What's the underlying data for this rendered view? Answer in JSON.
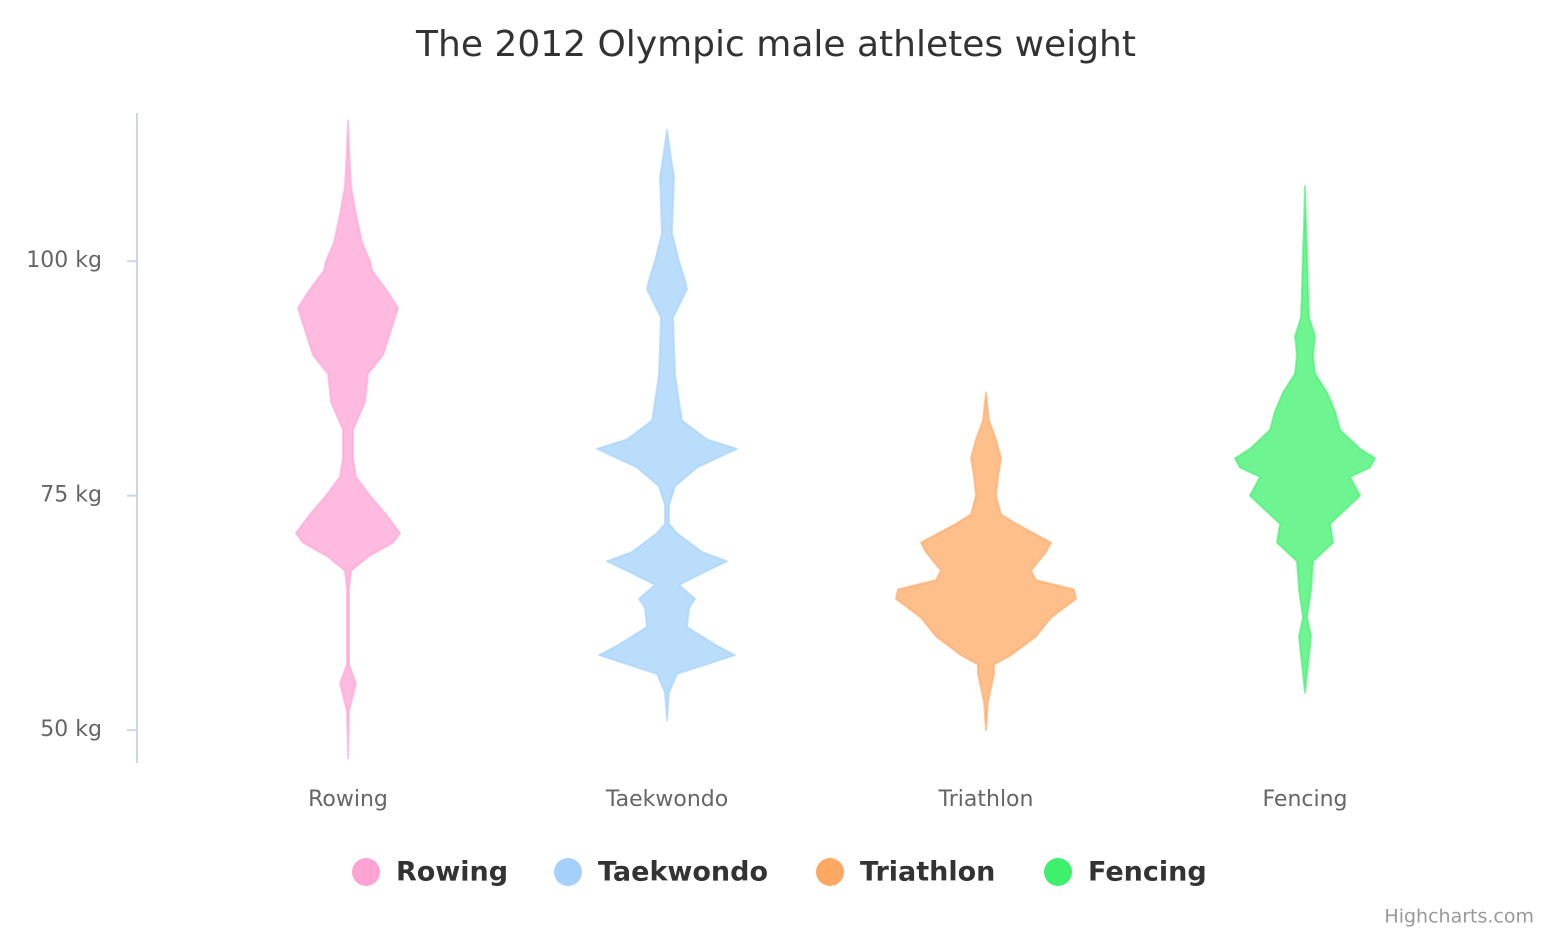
{
  "chart_data": {
    "type": "violin",
    "title": "The 2012 Olympic male athletes weight",
    "categories": [
      "Rowing",
      "Taekwondo",
      "Triathlon",
      "Fencing"
    ],
    "ylim": [
      46.5,
      115.8
    ],
    "yticks": [
      {
        "value": 50,
        "label": "50 kg"
      },
      {
        "value": 75,
        "label": "75 kg"
      },
      {
        "value": 100,
        "label": "100 kg"
      }
    ],
    "credits": "Highcharts.com",
    "series": [
      {
        "name": "Rowing",
        "color": "#ffa3d4",
        "values": [
          47,
          52,
          55,
          57,
          60,
          65,
          67,
          68.5,
          70,
          71,
          73,
          75,
          77,
          79,
          82,
          85,
          88,
          90,
          93,
          95,
          97,
          99,
          100,
          102,
          105,
          108,
          112,
          115
        ],
        "density": [
          0,
          0.01,
          0.08,
          0.01,
          0.01,
          0.01,
          0.03,
          0.2,
          0.45,
          0.52,
          0.38,
          0.22,
          0.08,
          0.05,
          0.05,
          0.17,
          0.2,
          0.35,
          0.44,
          0.5,
          0.38,
          0.24,
          0.22,
          0.14,
          0.08,
          0.03,
          0.01,
          0
        ]
      },
      {
        "name": "Taekwondo",
        "color": "#a3d1fb",
        "values": [
          51,
          54,
          56,
          58,
          59,
          61,
          63,
          64,
          65.5,
          67,
          68,
          69,
          71,
          72,
          74,
          76,
          78,
          80,
          81,
          83,
          85,
          88,
          91,
          94,
          97,
          98,
          100,
          103,
          106,
          109,
          111,
          114
        ],
        "density": [
          0,
          0.02,
          0.1,
          0.68,
          0.5,
          0.2,
          0.22,
          0.28,
          0.12,
          0.4,
          0.6,
          0.35,
          0.1,
          0.02,
          0.02,
          0.08,
          0.3,
          0.7,
          0.4,
          0.15,
          0.12,
          0.08,
          0.07,
          0.06,
          0.2,
          0.18,
          0.12,
          0.05,
          0.06,
          0.07,
          0.04,
          0
        ]
      },
      {
        "name": "Triathlon",
        "color": "#fda964",
        "values": [
          50,
          53,
          56,
          57,
          58,
          60,
          62,
          64,
          65,
          66,
          67,
          69,
          70,
          72,
          73,
          75,
          77,
          79,
          81,
          83,
          86
        ],
        "density": [
          0,
          0.02,
          0.08,
          0.08,
          0.25,
          0.5,
          0.65,
          0.9,
          0.88,
          0.5,
          0.45,
          0.6,
          0.65,
          0.3,
          0.15,
          0.1,
          0.12,
          0.15,
          0.1,
          0.03,
          0
        ]
      },
      {
        "name": "Fencing",
        "color": "#3ef06b",
        "values": [
          54,
          57,
          60,
          62,
          65,
          68,
          70,
          72,
          74,
          75,
          77,
          78,
          79,
          80,
          82,
          84,
          86,
          88,
          90,
          92,
          94,
          97,
          101,
          104,
          108
        ],
        "density": [
          0,
          0.03,
          0.06,
          0.02,
          0.06,
          0.08,
          0.28,
          0.25,
          0.45,
          0.55,
          0.45,
          0.65,
          0.7,
          0.55,
          0.35,
          0.3,
          0.22,
          0.1,
          0.08,
          0.1,
          0.04,
          0.03,
          0.02,
          0.01,
          0
        ]
      }
    ]
  }
}
